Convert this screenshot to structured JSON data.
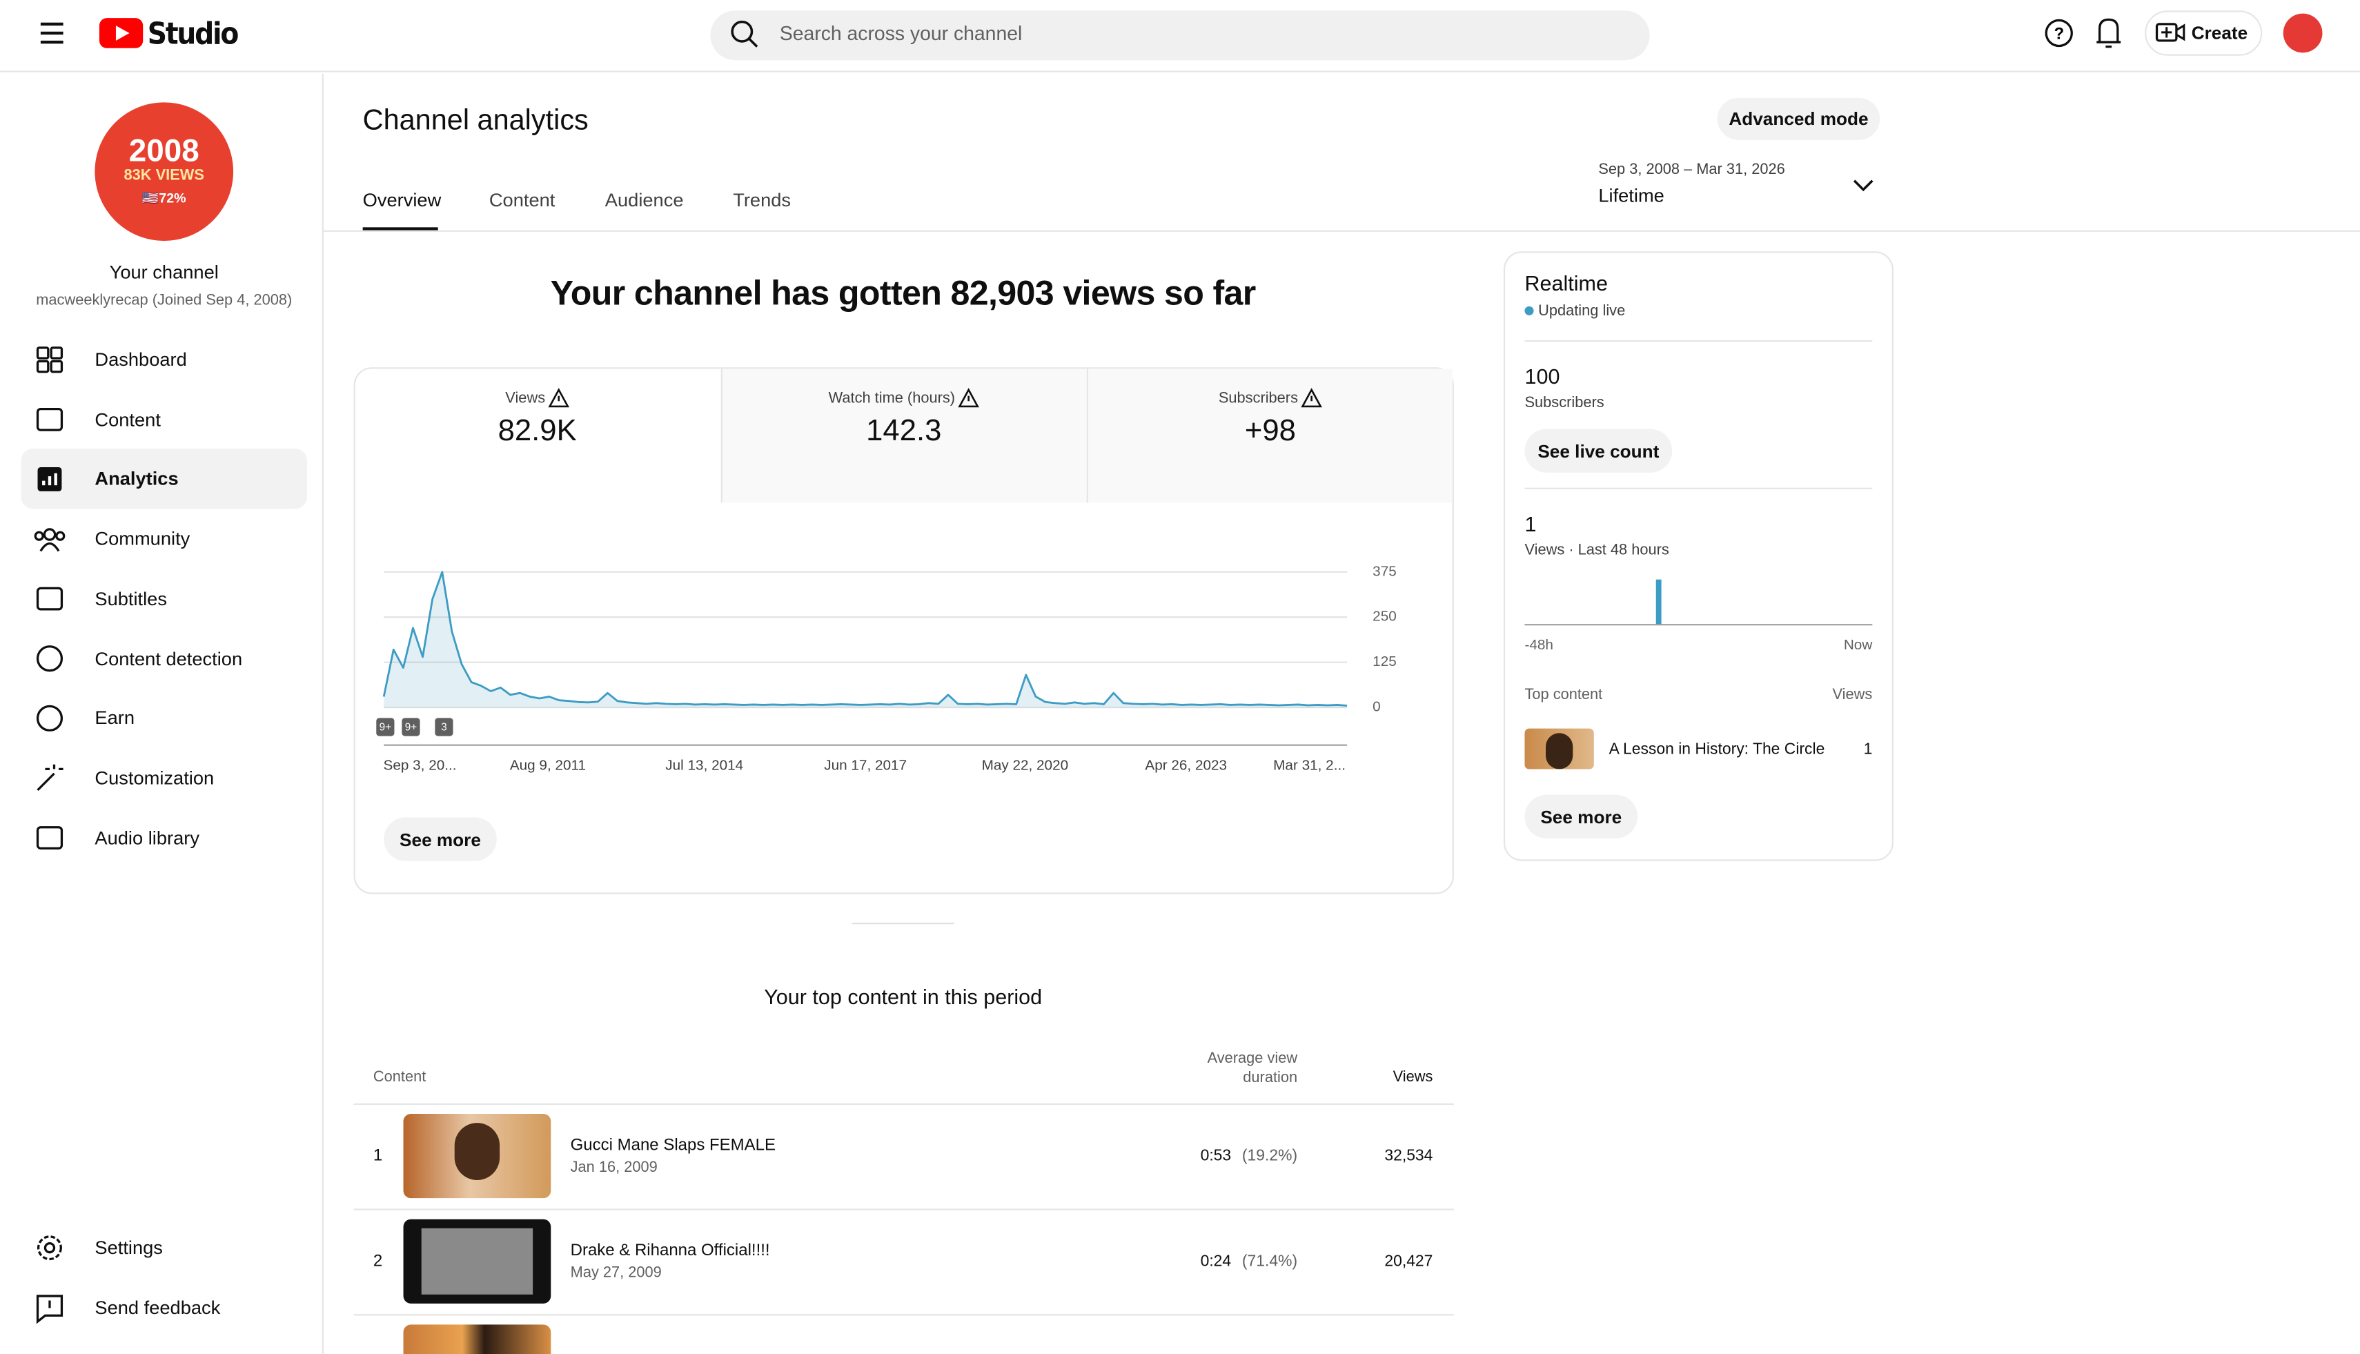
{
  "header": {
    "logo": "Studio",
    "search_placeholder": "Search across your channel",
    "create": "Create"
  },
  "sidebar": {
    "avatar": {
      "line1": "2008",
      "line2": "83K VIEWS",
      "line3": "🇺🇸72%"
    },
    "channel_title": "Your channel",
    "channel_sub": "macweeklyrecap (Joined Sep 4, 2008)",
    "nav": [
      {
        "label": "Dashboard",
        "active": false
      },
      {
        "label": "Content",
        "active": false
      },
      {
        "label": "Analytics",
        "active": true
      },
      {
        "label": "Community",
        "active": false
      },
      {
        "label": "Subtitles",
        "active": false
      },
      {
        "label": "Content detection",
        "active": false
      },
      {
        "label": "Earn",
        "active": false
      },
      {
        "label": "Customization",
        "active": false
      },
      {
        "label": "Audio library",
        "active": false
      }
    ],
    "footer": [
      "Settings",
      "Send feedback"
    ]
  },
  "page": {
    "title": "Channel analytics",
    "advanced": "Advanced mode",
    "tabs": [
      "Overview",
      "Content",
      "Audience",
      "Trends"
    ],
    "date_range": "Sep 3, 2008 – Mar 31, 2026",
    "period": "Lifetime"
  },
  "overview": {
    "headline": "Your channel has gotten 82,903 views so far",
    "metrics": [
      {
        "label": "Views",
        "value": "82.9K"
      },
      {
        "label": "Watch time (hours)",
        "value": "142.3"
      },
      {
        "label": "Subscribers",
        "value": "+98"
      }
    ],
    "see_more": "See more"
  },
  "chart_data": {
    "type": "line",
    "color": "#3d9cc4",
    "ylim": [
      0,
      375
    ],
    "yticks": [
      0,
      125,
      250,
      375
    ],
    "grid": true,
    "x_labels": [
      "Sep 3, 20...",
      "Aug 9, 2011",
      "Jul 13, 2014",
      "Jun 17, 2017",
      "May 22, 2020",
      "Apr 26, 2023",
      "Mar 31, 2..."
    ],
    "values": [
      30,
      160,
      110,
      220,
      140,
      300,
      375,
      210,
      120,
      70,
      60,
      45,
      55,
      35,
      40,
      30,
      25,
      30,
      20,
      18,
      15,
      14,
      16,
      40,
      18,
      14,
      12,
      10,
      12,
      10,
      9,
      10,
      8,
      9,
      8,
      9,
      8,
      7,
      8,
      7,
      8,
      7,
      8,
      7,
      8,
      7,
      8,
      9,
      8,
      7,
      8,
      9,
      8,
      10,
      8,
      9,
      12,
      10,
      35,
      10,
      9,
      10,
      8,
      9,
      10,
      9,
      90,
      30,
      15,
      12,
      10,
      14,
      10,
      12,
      9,
      40,
      12,
      10,
      9,
      10,
      8,
      9,
      7,
      8,
      7,
      8,
      9,
      7,
      8,
      7,
      8,
      7,
      6,
      7,
      8,
      6,
      7,
      6,
      7,
      5
    ],
    "annotations": [
      "9+",
      "9+",
      "3"
    ]
  },
  "realtime": {
    "title": "Realtime",
    "status": "Updating live",
    "subscribers": "100",
    "subscribers_label": "Subscribers",
    "live_button": "See live count",
    "views": "1",
    "views_label": "Views · Last 48 hours",
    "chart": {
      "type": "bar",
      "color": "#3d9cc4",
      "values": [
        0,
        0,
        0,
        0,
        0,
        0,
        0,
        0,
        0,
        0,
        0,
        0,
        0,
        0,
        0,
        0,
        0,
        0,
        1,
        0,
        0,
        0,
        0,
        0,
        0,
        0,
        0,
        0,
        0,
        0,
        0,
        0,
        0,
        0,
        0,
        0,
        0,
        0,
        0,
        0,
        0,
        0,
        0,
        0,
        0,
        0,
        0,
        0
      ],
      "start_label": "-48h",
      "end_label": "Now"
    },
    "top_content_label": "Top content",
    "views_column": "Views",
    "top_item": {
      "title": "A Lesson in History: The Circle",
      "views": "1"
    },
    "see_more": "See more"
  },
  "top_content": {
    "title": "Your top content in this period",
    "columns": [
      "Content",
      "Average view duration",
      "Views"
    ],
    "rows": [
      {
        "rank": "1",
        "title": "Gucci Mane Slaps FEMALE",
        "date": "Jan 16, 2009",
        "avd": "0:53",
        "avd_pct": "(19.2%)",
        "views": "32,534"
      },
      {
        "rank": "2",
        "title": "Drake & Rihanna Official!!!!",
        "date": "May 27, 2009",
        "avd": "0:24",
        "avd_pct": "(71.4%)",
        "views": "20,427"
      }
    ]
  }
}
